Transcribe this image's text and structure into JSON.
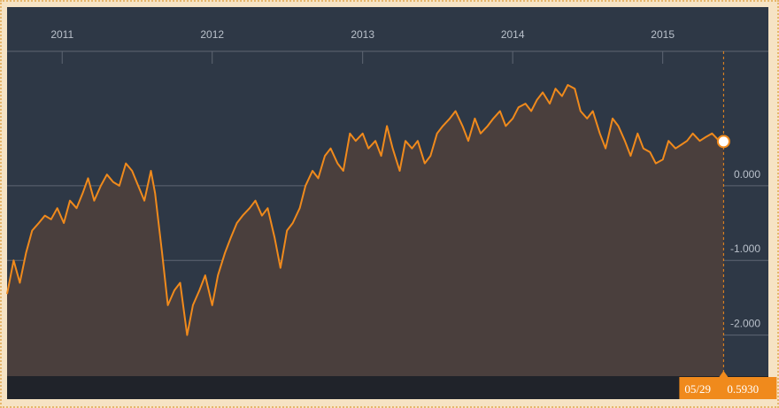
{
  "colors": {
    "background": "#2e3846",
    "footer": "#20232a",
    "line": "#f08a1c",
    "area_fill": "#4a3f3d",
    "grid": "#5e6673",
    "tick_text": "#b9c0ca",
    "tag_bg": "#f08a1c"
  },
  "chart_data": {
    "type": "line",
    "title": "",
    "xlabel": "",
    "ylabel": "",
    "x_ticks": [
      "2011",
      "2012",
      "2013",
      "2014",
      "2015"
    ],
    "y_ticks": [
      "0.000",
      "-1.000",
      "-2.000"
    ],
    "xlim": [
      "2010-08-20",
      "2015-09-15"
    ],
    "ylim": [
      -2.55,
      1.8
    ],
    "grid": true,
    "legend": "none",
    "last_point": {
      "date_label": "05/29",
      "value": "0.5930"
    },
    "series": [
      {
        "x": [
          "2010-08-20",
          "2010-09-05",
          "2010-09-20",
          "2010-10-05",
          "2010-10-20",
          "2010-11-05",
          "2010-11-20",
          "2010-12-05",
          "2010-12-20",
          "2011-01-05",
          "2011-01-20",
          "2011-02-05",
          "2011-02-20",
          "2011-03-05",
          "2011-03-20",
          "2011-04-05",
          "2011-04-20",
          "2011-05-05",
          "2011-05-20",
          "2011-06-05",
          "2011-06-20",
          "2011-07-05",
          "2011-07-20",
          "2011-08-05",
          "2011-08-15",
          "2011-09-01",
          "2011-09-15",
          "2011-10-01",
          "2011-10-15",
          "2011-11-01",
          "2011-11-15",
          "2011-12-01",
          "2011-12-15",
          "2012-01-01",
          "2012-01-15",
          "2012-02-01",
          "2012-02-15",
          "2012-03-01",
          "2012-03-15",
          "2012-04-01",
          "2012-04-15",
          "2012-05-01",
          "2012-05-15",
          "2012-06-01",
          "2012-06-15",
          "2012-07-01",
          "2012-07-15",
          "2012-08-01",
          "2012-08-15",
          "2012-09-01",
          "2012-09-15",
          "2012-10-01",
          "2012-10-15",
          "2012-11-01",
          "2012-11-15",
          "2012-12-01",
          "2012-12-15",
          "2013-01-01",
          "2013-01-15",
          "2013-02-01",
          "2013-02-15",
          "2013-03-01",
          "2013-03-15",
          "2013-04-01",
          "2013-04-15",
          "2013-05-01",
          "2013-05-15",
          "2013-06-01",
          "2013-06-15",
          "2013-07-01",
          "2013-07-15",
          "2013-08-01",
          "2013-08-15",
          "2013-09-01",
          "2013-09-15",
          "2013-10-01",
          "2013-10-15",
          "2013-11-01",
          "2013-11-15",
          "2013-12-01",
          "2013-12-15",
          "2014-01-01",
          "2014-01-15",
          "2014-02-01",
          "2014-02-15",
          "2014-03-01",
          "2014-03-15",
          "2014-04-01",
          "2014-04-15",
          "2014-05-01",
          "2014-05-15",
          "2014-06-01",
          "2014-06-15",
          "2014-07-01",
          "2014-07-15",
          "2014-08-01",
          "2014-08-15",
          "2014-09-01",
          "2014-09-15",
          "2014-10-01",
          "2014-10-15",
          "2014-11-01",
          "2014-11-15",
          "2014-12-01",
          "2014-12-15",
          "2015-01-01",
          "2015-01-15",
          "2015-02-01",
          "2015-02-15",
          "2015-03-01",
          "2015-03-15",
          "2015-04-01",
          "2015-04-15",
          "2015-05-01",
          "2015-05-15",
          "2015-05-29"
        ],
        "values": [
          -1.45,
          -1.0,
          -1.3,
          -0.9,
          -0.6,
          -0.5,
          -0.4,
          -0.45,
          -0.3,
          -0.5,
          -0.2,
          -0.3,
          -0.1,
          0.1,
          -0.2,
          0.0,
          0.15,
          0.05,
          0.0,
          0.3,
          0.2,
          0.0,
          -0.2,
          0.2,
          -0.1,
          -0.9,
          -1.6,
          -1.4,
          -1.3,
          -2.0,
          -1.6,
          -1.4,
          -1.2,
          -1.6,
          -1.2,
          -0.9,
          -0.7,
          -0.5,
          -0.4,
          -0.3,
          -0.2,
          -0.4,
          -0.3,
          -0.7,
          -1.1,
          -0.6,
          -0.5,
          -0.3,
          0.0,
          0.2,
          0.1,
          0.4,
          0.5,
          0.3,
          0.2,
          0.7,
          0.6,
          0.7,
          0.5,
          0.6,
          0.4,
          0.8,
          0.5,
          0.2,
          0.6,
          0.5,
          0.6,
          0.3,
          0.4,
          0.7,
          0.8,
          0.9,
          1.0,
          0.8,
          0.6,
          0.9,
          0.7,
          0.8,
          0.9,
          1.0,
          0.8,
          0.9,
          1.05,
          1.1,
          1.0,
          1.15,
          1.25,
          1.1,
          1.3,
          1.2,
          1.35,
          1.3,
          1.0,
          0.9,
          1.0,
          0.7,
          0.5,
          0.9,
          0.8,
          0.6,
          0.4,
          0.7,
          0.5,
          0.45,
          0.3,
          0.35,
          0.6,
          0.5,
          0.55,
          0.6,
          0.7,
          0.6,
          0.65,
          0.7,
          0.62,
          0.593
        ]
      }
    ]
  }
}
